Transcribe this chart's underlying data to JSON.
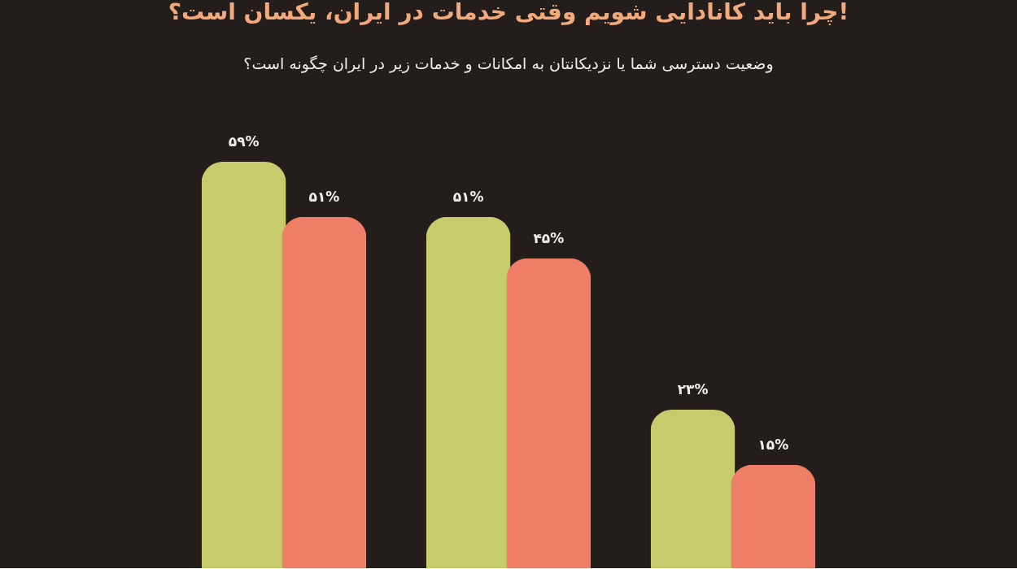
{
  "chart_data": {
    "type": "bar",
    "title": "چرا باید کانادایی شویم وقتی خدمات در ایران، یکسان است؟!",
    "subtitle": "وضعیت دسترسی شما یا نزدیکانتان به امکانات و خدمات زیر در ایران چگونه است؟",
    "categories": [
      null,
      null,
      null
    ],
    "series": [
      {
        "color": "#c6cb6c",
        "values": [
          59,
          51,
          23
        ],
        "value_labels": [
          "۵۹%",
          "۵۱%",
          "۲۳%"
        ]
      },
      {
        "color": "#ee7f66",
        "values": [
          51,
          45,
          15
        ],
        "value_labels": [
          "۵۱%",
          "۴۵%",
          "۱۵%"
        ]
      }
    ]
  }
}
